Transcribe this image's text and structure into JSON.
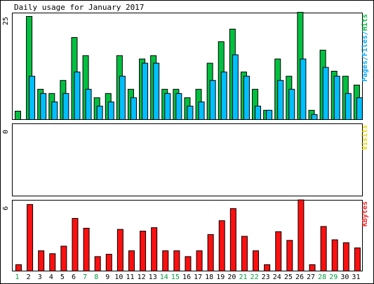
{
  "chart_data": {
    "type": "bar",
    "title": "Daily usage for January 2017",
    "categories": [
      "1",
      "2",
      "3",
      "4",
      "5",
      "6",
      "7",
      "8",
      "9",
      "10",
      "11",
      "12",
      "13",
      "14",
      "15",
      "16",
      "17",
      "18",
      "19",
      "20",
      "21",
      "22",
      "23",
      "24",
      "25",
      "26",
      "27",
      "28",
      "29",
      "30",
      "31"
    ],
    "weekend_days": [
      "1",
      "7",
      "8",
      "14",
      "15",
      "21",
      "22",
      "28",
      "29"
    ],
    "panels": [
      {
        "name": "hits-files-pages",
        "y_tick": "25",
        "ymax": 25,
        "ylabel_parts": [
          {
            "text": "Pages",
            "color": "#00aaff"
          },
          {
            "text": "/",
            "color": "#00aaff"
          },
          {
            "text": "Files",
            "color": "#00aaff"
          },
          {
            "text": "/",
            "color": "#00aaff"
          },
          {
            "text": "Hits",
            "color": "#00c040"
          }
        ],
        "series": [
          {
            "key": "hits",
            "color": "#00c040",
            "values": [
              2,
              24.5,
              7.2,
              6.2,
              9.3,
              19.5,
              15.2,
              5.2,
              6.2,
              15.2,
              7.2,
              14.4,
              15.2,
              7.2,
              7.2,
              5.2,
              7.2,
              13.4,
              18.5,
              21.5,
              11.3,
              7.2,
              2.2,
              14.4,
              10.3,
              25.5,
              2.2,
              16.5,
              11.5,
              10.3,
              8.2
            ]
          },
          {
            "key": "files",
            "color": "#00bfff",
            "values": [
              0,
              10.3,
              6.2,
              4.2,
              6.2,
              11.3,
              7.2,
              3.2,
              4.2,
              10.3,
              5.2,
              13.4,
              13.4,
              6.2,
              6.2,
              3.2,
              4.2,
              9.3,
              11.3,
              15.4,
              10.3,
              3.2,
              2.2,
              9.3,
              7.2,
              14.4,
              1.2,
              12.4,
              10.3,
              6.2,
              5.2
            ]
          }
        ]
      },
      {
        "name": "visits",
        "y_tick": "0",
        "ymax": 1,
        "ylabel_parts": [
          {
            "text": "Visits",
            "color": "#e8d800"
          }
        ],
        "series": []
      },
      {
        "name": "kbytes",
        "y_tick": "6",
        "ymax": 6,
        "ylabel_parts": [
          {
            "text": "KBytes",
            "color": "#ff2020"
          }
        ],
        "series": [
          {
            "key": "kbytes",
            "color": "#ff1010",
            "values": [
              0.55,
              5.75,
              1.75,
              1.5,
              2.15,
              4.55,
              3.7,
              1.25,
              1.45,
              3.6,
              1.75,
              3.45,
              3.75,
              1.75,
              1.75,
              1.25,
              1.75,
              3.15,
              4.35,
              5.4,
              3.0,
              1.75,
              0.55,
              3.4,
              2.65,
              6.15,
              0.55,
              3.85,
              2.7,
              2.45,
              2.0
            ]
          }
        ]
      }
    ]
  },
  "colors": {
    "background": "#ffffff",
    "frame": "#000000",
    "title_text": "#000000",
    "weekday_label": "#000000",
    "weekend_label": "#00a040"
  }
}
